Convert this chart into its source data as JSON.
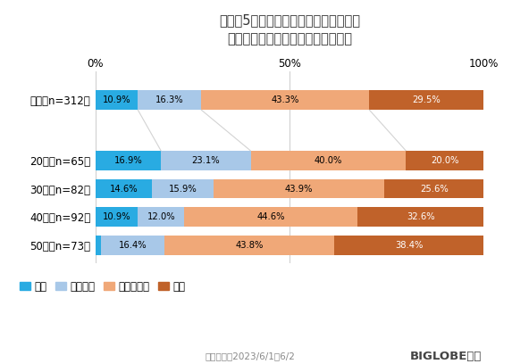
{
  "title": "コロナ5類移行後、初の夏のボーナスを\n大きく使いたいという気持ちがある",
  "categories": [
    "全体（n=312）",
    "20代（n=65）",
    "30代（n=82）",
    "40代（n=92）",
    "50代（n=73）"
  ],
  "series": {
    "ある": [
      10.9,
      16.9,
      14.6,
      10.9,
      1.4
    ],
    "ややある": [
      16.3,
      23.1,
      15.9,
      12.0,
      16.4
    ],
    "あまりない": [
      43.3,
      40.0,
      43.9,
      44.6,
      43.8
    ],
    "ない": [
      29.5,
      20.0,
      25.6,
      32.6,
      38.4
    ]
  },
  "colors": {
    "ある": "#29ABE2",
    "ややある": "#A8C8E8",
    "あまりない": "#F0A878",
    "ない": "#C0622A"
  },
  "legend_labels": [
    "ある",
    "ややある",
    "あまりない",
    "ない"
  ],
  "xlabel_ticks": [
    0,
    50,
    100
  ],
  "xlabel_tick_labels": [
    "0%",
    "50%",
    "100%"
  ],
  "footnote": "調査期間：2023/6/1〜6/2",
  "biglobe": "BIGLOBE調べ",
  "figsize": [
    5.73,
    4.08
  ],
  "dpi": 100
}
